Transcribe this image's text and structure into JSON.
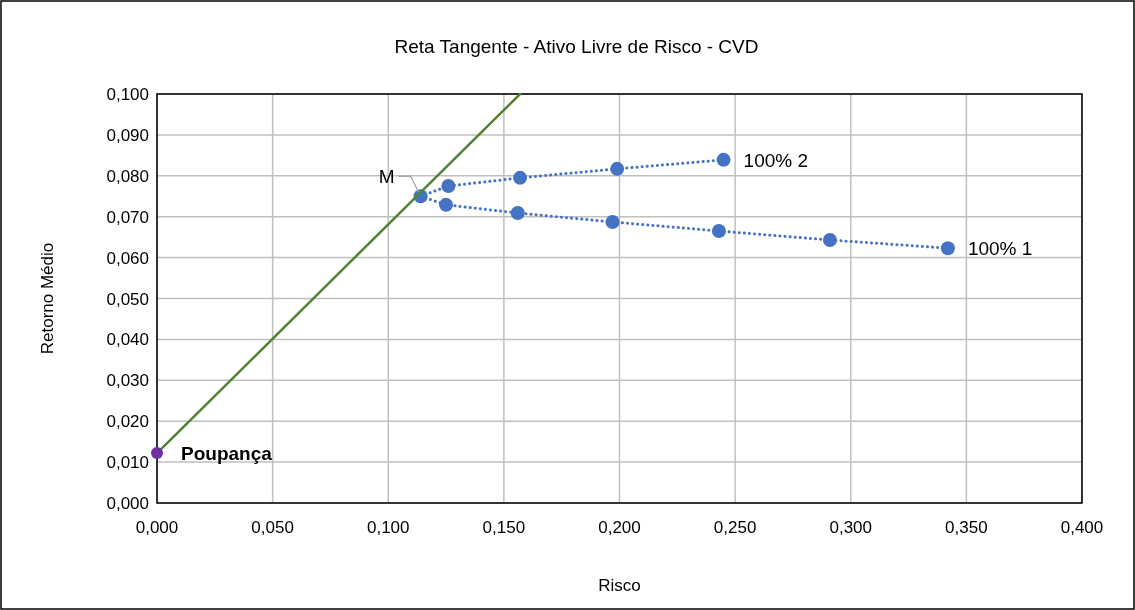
{
  "chart_data": {
    "type": "line",
    "title": "Reta Tangente - Ativo Livre de Risco - CVD",
    "xlabel": "Risco",
    "ylabel": "Retorno Médio",
    "xlim": [
      0,
      0.4
    ],
    "xticks": [
      {
        "value": 0,
        "label": "0,000"
      },
      {
        "value": 0.05,
        "label": "0,050"
      },
      {
        "value": 0.1,
        "label": "0,100"
      },
      {
        "value": 0.15,
        "label": "0,150"
      },
      {
        "value": 0.2,
        "label": "0,200"
      },
      {
        "value": 0.25,
        "label": "0,250"
      },
      {
        "value": 0.3,
        "label": "0,300"
      },
      {
        "value": 0.35,
        "label": "0,350"
      },
      {
        "value": 0.4,
        "label": "0,400"
      }
    ],
    "ylim": [
      0,
      0.1
    ],
    "yticks": [
      {
        "value": 0,
        "label": "0,000"
      },
      {
        "value": 0.01,
        "label": "0,010"
      },
      {
        "value": 0.02,
        "label": "0,020"
      },
      {
        "value": 0.03,
        "label": "0,030"
      },
      {
        "value": 0.04,
        "label": "0,040"
      },
      {
        "value": 0.05,
        "label": "0,050"
      },
      {
        "value": 0.06,
        "label": "0,060"
      },
      {
        "value": 0.07,
        "label": "0,070"
      },
      {
        "value": 0.08,
        "label": "0,080"
      },
      {
        "value": 0.09,
        "label": "0,090"
      },
      {
        "value": 0.1,
        "label": "0,100"
      }
    ],
    "grid": true,
    "series": [
      {
        "color": "#4472c4",
        "marker": "circle",
        "line_style": "dotted",
        "x": [
          0.342,
          0.291,
          0.243,
          0.197,
          0.156,
          0.125,
          0.114,
          0.126,
          0.157,
          0.199,
          0.245
        ],
        "values": [
          0.0623,
          0.0643,
          0.0665,
          0.0687,
          0.0709,
          0.0729,
          0.075,
          0.0775,
          0.0795,
          0.0817,
          0.0839
        ]
      },
      {
        "type": "line",
        "color": "#548235",
        "marker": "none",
        "line_style": "solid",
        "x": [
          0,
          0.157
        ],
        "values": [
          0.0122,
          0.1
        ]
      },
      {
        "type": "scatter",
        "color": "#7030a0",
        "marker": "circle",
        "x": [
          0
        ],
        "values": [
          0.0122
        ]
      }
    ],
    "annotations": [
      {
        "text": "M",
        "x": 0.114,
        "y": 0.075
      },
      {
        "text": "100% 2",
        "x": 0.245,
        "y": 0.0839
      },
      {
        "text": "100% 1",
        "x": 0.342,
        "y": 0.0623
      },
      {
        "text": "Poupança",
        "x": 0,
        "y": 0.0122
      }
    ]
  }
}
